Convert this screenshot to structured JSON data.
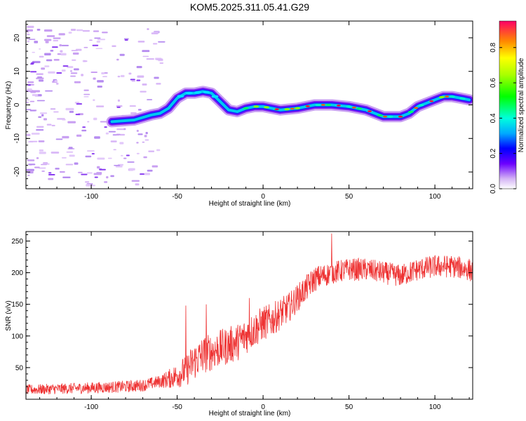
{
  "title": "KOM5.2025.311.05.41.G29",
  "chart_data": [
    {
      "type": "heatmap",
      "name": "spectrogram",
      "xlabel": "Height of straight line (km)",
      "ylabel": "Frequency (Hz)",
      "xlim": [
        -138,
        122
      ],
      "ylim": [
        -25,
        25
      ],
      "xticks": [
        -100,
        -50,
        0,
        50,
        100
      ],
      "xtick_labels": [
        "-100",
        "-50",
        "0",
        "50",
        "100"
      ],
      "yticks": [
        -20,
        -10,
        0,
        10,
        20
      ],
      "ytick_labels": [
        "-20",
        "-10",
        "0",
        "10",
        "20"
      ],
      "ridge": {
        "x": [
          -88,
          -75,
          -65,
          -60,
          -55,
          -50,
          -45,
          -40,
          -35,
          -30,
          -25,
          -20,
          -15,
          -10,
          -5,
          0,
          10,
          20,
          30,
          40,
          50,
          60,
          70,
          75,
          80,
          85,
          90,
          95,
          100,
          105,
          110,
          115,
          120
        ],
        "y": [
          -5,
          -4.5,
          -3,
          -2.5,
          -1,
          2,
          3.5,
          3.5,
          4,
          3.5,
          1,
          -1.5,
          -2,
          -1,
          -0.5,
          -0.5,
          -1.5,
          -1,
          0,
          0,
          -0.5,
          -1.5,
          -3.5,
          -3.5,
          -3.5,
          -2.5,
          -0.5,
          0.5,
          1.5,
          2.5,
          2.5,
          2,
          1.5
        ]
      },
      "colorbar": {
        "label": "Normalized spectral amplitude",
        "ticks": [
          0.0,
          0.2,
          0.4,
          0.6,
          0.8
        ],
        "tick_labels": [
          "0.0",
          "0.2",
          "0.4",
          "0.6",
          "0.8"
        ],
        "range": [
          0,
          0.95
        ]
      }
    },
    {
      "type": "line",
      "name": "snr",
      "xlabel": "Height of straight line (km)",
      "ylabel": "SNR (v/v)",
      "xlim": [
        -138,
        122
      ],
      "ylim": [
        0,
        265
      ],
      "xticks": [
        -100,
        -50,
        0,
        50,
        100
      ],
      "xtick_labels": [
        "-100",
        "-50",
        "0",
        "50",
        "100"
      ],
      "yticks": [
        50,
        100,
        150,
        200,
        250
      ],
      "ytick_labels": [
        "50",
        "100",
        "150",
        "200",
        "250"
      ],
      "color": "#ee3333",
      "trend": {
        "x": [
          -138,
          -100,
          -80,
          -70,
          -60,
          -55,
          -50,
          -45,
          -40,
          -35,
          -30,
          -25,
          -20,
          -15,
          -10,
          -5,
          0,
          5,
          10,
          15,
          20,
          25,
          30,
          40,
          50,
          60,
          70,
          80,
          90,
          100,
          110,
          120,
          122
        ],
        "y": [
          15,
          18,
          20,
          22,
          28,
          32,
          38,
          45,
          60,
          70,
          75,
          80,
          85,
          90,
          100,
          110,
          120,
          125,
          135,
          145,
          160,
          175,
          190,
          200,
          205,
          205,
          200,
          195,
          205,
          210,
          210,
          205,
          200
        ]
      },
      "noise": {
        "x": [
          -138,
          -60,
          -40,
          -20,
          0,
          20,
          40,
          122
        ],
        "y": [
          8,
          10,
          30,
          30,
          28,
          22,
          18,
          18
        ]
      },
      "spikes": [
        {
          "x": 40,
          "y": 262
        },
        {
          "x": -45,
          "y": 148
        },
        {
          "x": -33,
          "y": 150
        },
        {
          "x": -8,
          "y": 160
        }
      ]
    }
  ]
}
